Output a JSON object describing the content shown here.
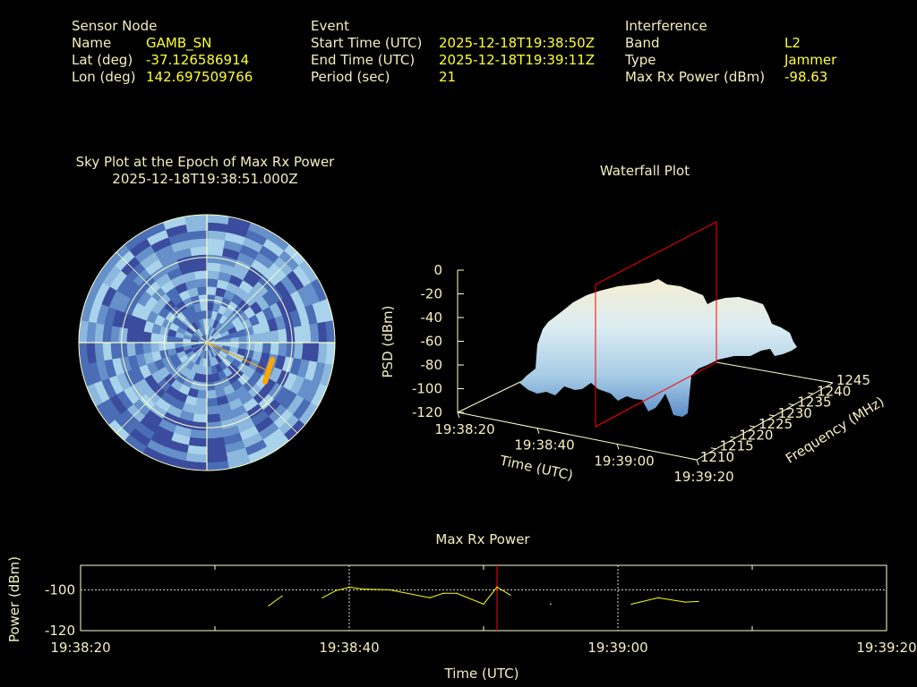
{
  "header": {
    "sensor": {
      "title": "Sensor Node",
      "rows": [
        {
          "label": "Name",
          "value": "GAMB_SN"
        },
        {
          "label": "Lat (deg)",
          "value": "-37.126586914"
        },
        {
          "label": "Lon (deg)",
          "value": "142.697509766"
        }
      ]
    },
    "event": {
      "title": "Event",
      "rows": [
        {
          "label": "Start Time (UTC)",
          "value": "2025-12-18T19:38:50Z"
        },
        {
          "label": "End Time (UTC)",
          "value": "2025-12-18T19:39:11Z"
        },
        {
          "label": "Period (sec)",
          "value": "21"
        }
      ]
    },
    "interference": {
      "title": "Interference",
      "rows": [
        {
          "label": "Band",
          "value": "L2"
        },
        {
          "label": "Type",
          "value": "Jammer"
        },
        {
          "label": "Max Rx Power (dBm)",
          "value": "-98.63"
        }
      ]
    }
  },
  "colors": {
    "label": "#f4efbf",
    "value": "#ffff33",
    "grid": "#ffffcc",
    "marker": "#ff0000",
    "track": "#ffa500",
    "sky_palette": [
      "#3b4c9e",
      "#4a6db5",
      "#6690c9",
      "#8db8de",
      "#a9d3ea"
    ]
  },
  "chart_data": [
    {
      "type": "heatmap",
      "projection": "polar",
      "title": "Sky Plot at the Epoch of Max Rx Power",
      "subtitle": "2025-12-18T19:38:51.000Z",
      "grid": true,
      "track": {
        "description_color": "#ffa500"
      }
    },
    {
      "type": "surface",
      "title": "Waterfall Plot",
      "xlabel": "Time (UTC)",
      "ylabel": "Frequency (MHz)",
      "zlabel": "PSD (dBm)",
      "x_ticks": [
        "19:38:20",
        "19:38:40",
        "19:39:00",
        "19:39:20"
      ],
      "y_ticks": [
        "1210",
        "1215",
        "1220",
        "1225",
        "1230",
        "1235",
        "1240",
        "1245"
      ],
      "z_ticks": [
        "0",
        "-20",
        "-40",
        "-60",
        "-80",
        "-100",
        "-120"
      ],
      "xlim": [
        "19:38:20",
        "19:39:20"
      ],
      "ylim": [
        1210,
        1245
      ],
      "zlim": [
        -120,
        0
      ],
      "marker_time": "19:38:51"
    },
    {
      "type": "line",
      "title": "Max Rx Power",
      "xlabel": "Time (UTC)",
      "ylabel": "Power (dBm)",
      "x_ticks": [
        "19:38:20",
        "19:38:40",
        "19:39:00",
        "19:39:20"
      ],
      "y_ticks": [
        "-100",
        "-120"
      ],
      "xlim": [
        "19:38:20",
        "19:39:20"
      ],
      "ylim": [
        -120,
        -88
      ],
      "marker_time": "19:38:51",
      "grid": true,
      "segments": [
        [
          [
            "19:38:34",
            -107.8
          ],
          [
            "19:38:35",
            -103.0
          ]
        ],
        [
          [
            "19:38:38",
            -103.9
          ],
          [
            "19:38:39",
            -100.4
          ],
          [
            "19:38:40",
            -98.7
          ],
          [
            "19:38:41",
            -99.6
          ],
          [
            "19:38:43",
            -100.0
          ],
          [
            "19:38:46",
            -103.9
          ],
          [
            "19:38:47",
            -101.7
          ],
          [
            "19:38:48",
            -101.7
          ],
          [
            "19:38:50",
            -107.0
          ],
          [
            "19:38:51",
            -98.6
          ],
          [
            "19:38:52",
            -102.6
          ]
        ],
        [
          [
            "19:38:55",
            -107.0
          ]
        ],
        [
          [
            "19:39:01",
            -107.0
          ],
          [
            "19:39:03",
            -103.9
          ],
          [
            "19:39:05",
            -106.0
          ],
          [
            "19:39:06",
            -105.7
          ]
        ]
      ]
    }
  ]
}
